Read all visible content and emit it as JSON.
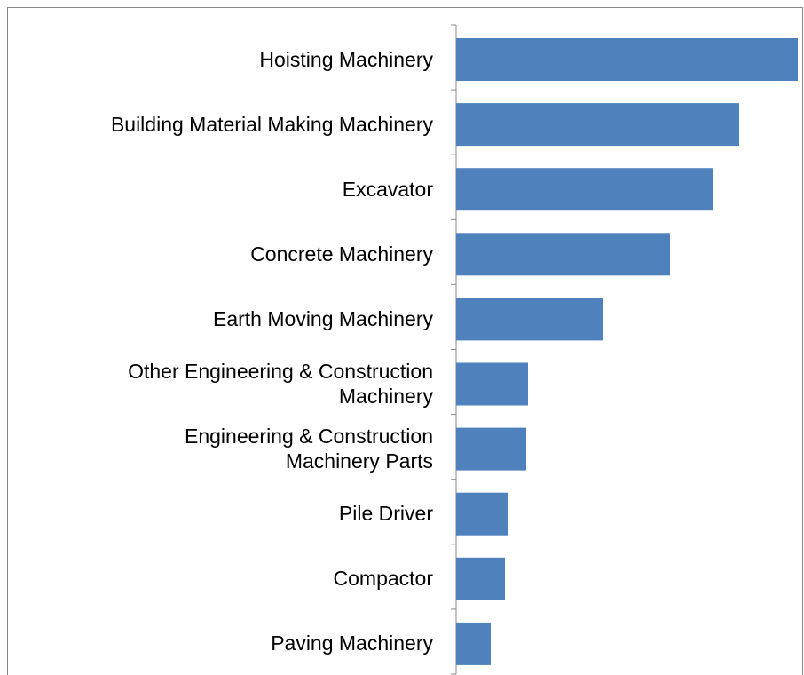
{
  "chart_data": {
    "type": "barh",
    "categories": [
      "Hoisting Machinery",
      "Building Material Making Machinery",
      "Excavator",
      "Concrete Machinery",
      "Earth Moving Machinery",
      "Other Engineering & Construction\nMachinery",
      "Engineering & Construction\nMachinery Parts",
      "Pile Driver",
      "Compactor",
      "Paving Machinery"
    ],
    "values": [
      385,
      319,
      289,
      241,
      165,
      81,
      79,
      59,
      55,
      39
    ],
    "color": "#4f81bd",
    "xlim": [
      0,
      390
    ]
  }
}
